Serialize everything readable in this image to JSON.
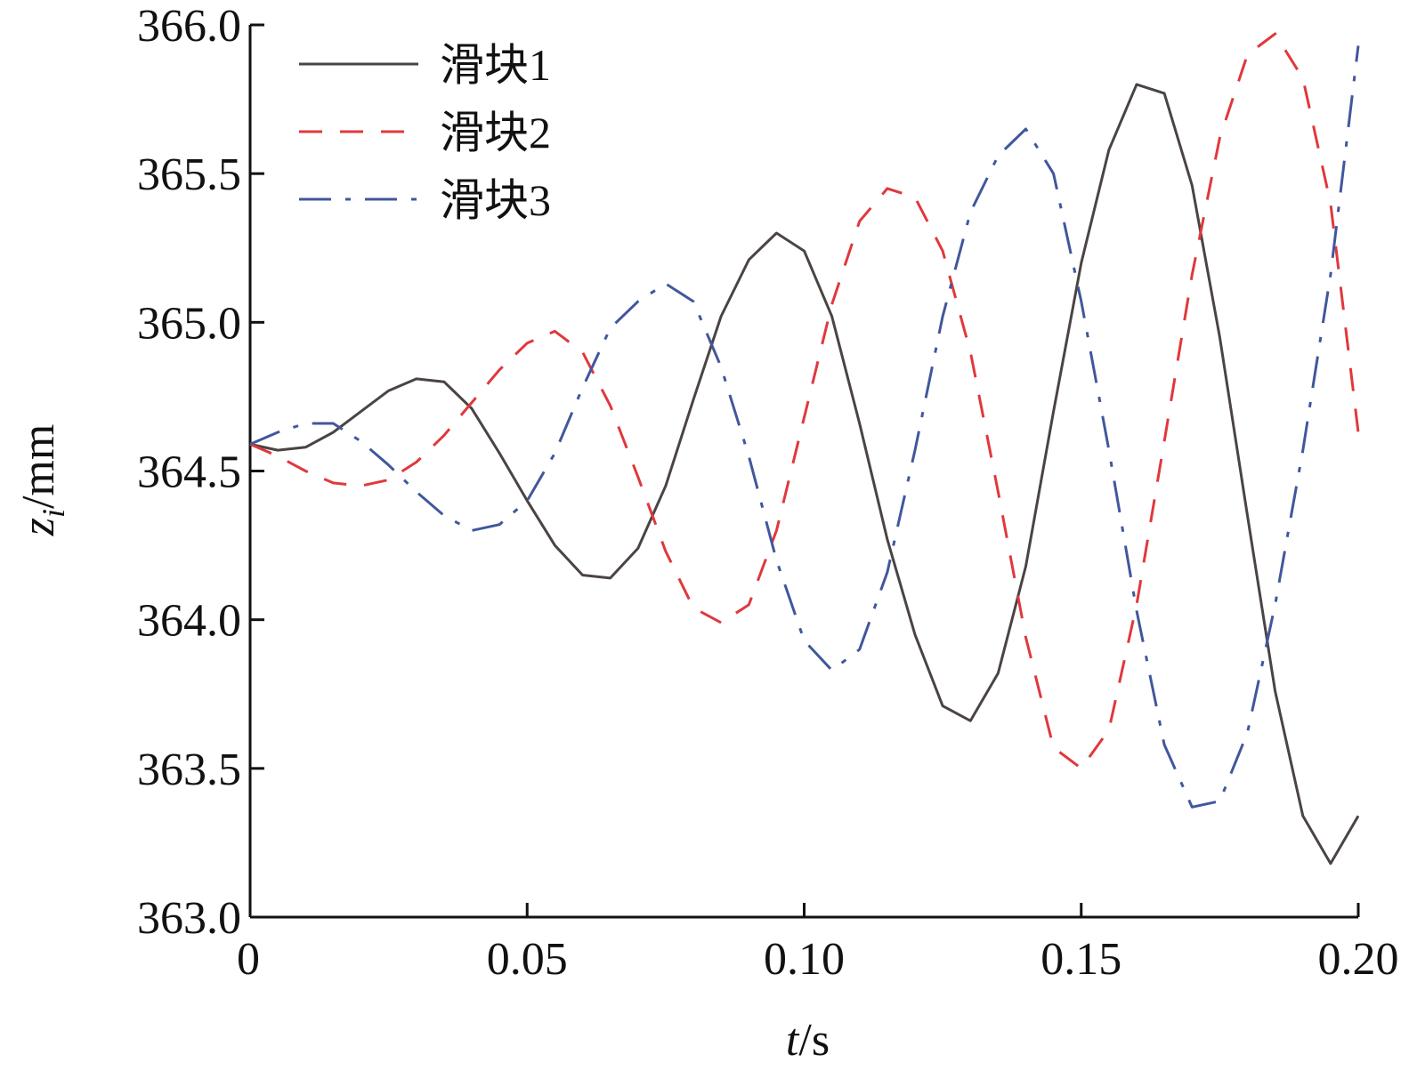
{
  "chart_data": {
    "type": "line",
    "xlabel_var": "t",
    "xlabel_unit": "/s",
    "ylabel_var": "z",
    "ylabel_sub": "i",
    "ylabel_unit": "/mm",
    "xlim": [
      0,
      0.2
    ],
    "ylim": [
      363.0,
      366.0
    ],
    "xticks": [
      0,
      0.05,
      0.1,
      0.15,
      0.2
    ],
    "xtick_labels": [
      "0",
      "0.05",
      "0.10",
      "0.15",
      "0.20"
    ],
    "yticks": [
      363.0,
      363.5,
      364.0,
      364.5,
      365.0,
      365.5,
      366.0
    ],
    "ytick_labels": [
      "363.0",
      "363.5",
      "364.0",
      "364.5",
      "365.0",
      "365.5",
      "366.0"
    ],
    "grid": false,
    "legend_position": "top-left",
    "x": [
      0,
      0.005,
      0.01,
      0.015,
      0.02,
      0.025,
      0.03,
      0.035,
      0.04,
      0.045,
      0.05,
      0.055,
      0.06,
      0.065,
      0.07,
      0.075,
      0.08,
      0.085,
      0.09,
      0.095,
      0.1,
      0.105,
      0.11,
      0.115,
      0.12,
      0.125,
      0.13,
      0.135,
      0.14,
      0.145,
      0.15,
      0.155,
      0.16,
      0.165,
      0.17,
      0.175,
      0.18,
      0.185,
      0.19,
      0.195,
      0.2
    ],
    "series": [
      {
        "name": "滑块1",
        "color": "#4a4442",
        "dash": "solid",
        "values": [
          364.59,
          364.57,
          364.58,
          364.63,
          364.7,
          364.77,
          364.81,
          364.8,
          364.71,
          364.56,
          364.4,
          364.25,
          364.15,
          364.14,
          364.24,
          364.45,
          364.74,
          365.02,
          365.21,
          365.3,
          365.24,
          365.02,
          364.66,
          364.27,
          363.95,
          363.71,
          363.66,
          363.82,
          364.18,
          364.7,
          365.2,
          365.58,
          365.8,
          365.77,
          365.46,
          364.95,
          364.35,
          363.76,
          363.34,
          363.18,
          363.34
        ]
      },
      {
        "name": "滑块2",
        "color": "#e0383d",
        "dash": "dash",
        "values": [
          364.59,
          364.55,
          364.5,
          364.46,
          364.45,
          364.47,
          364.53,
          364.62,
          364.73,
          364.84,
          364.93,
          364.97,
          364.9,
          364.72,
          364.48,
          364.23,
          364.04,
          363.99,
          364.05,
          364.3,
          364.68,
          365.06,
          365.34,
          365.45,
          365.42,
          365.24,
          364.9,
          364.43,
          363.94,
          363.57,
          363.5,
          363.63,
          364.05,
          364.6,
          365.16,
          365.62,
          365.9,
          365.97,
          365.82,
          365.4,
          364.63
        ]
      },
      {
        "name": "滑块3",
        "color": "#41579c",
        "dash": "dashdot",
        "values": [
          364.59,
          364.63,
          364.66,
          364.66,
          364.6,
          364.52,
          364.43,
          364.35,
          364.3,
          364.32,
          364.4,
          364.56,
          364.78,
          364.98,
          365.07,
          365.13,
          365.07,
          364.85,
          364.55,
          364.2,
          363.93,
          363.83,
          363.9,
          364.16,
          364.57,
          365.02,
          365.37,
          365.56,
          365.65,
          365.5,
          365.07,
          364.57,
          364.03,
          363.58,
          363.37,
          363.39,
          363.62,
          364.05,
          364.57,
          365.16,
          365.93
        ]
      }
    ]
  }
}
